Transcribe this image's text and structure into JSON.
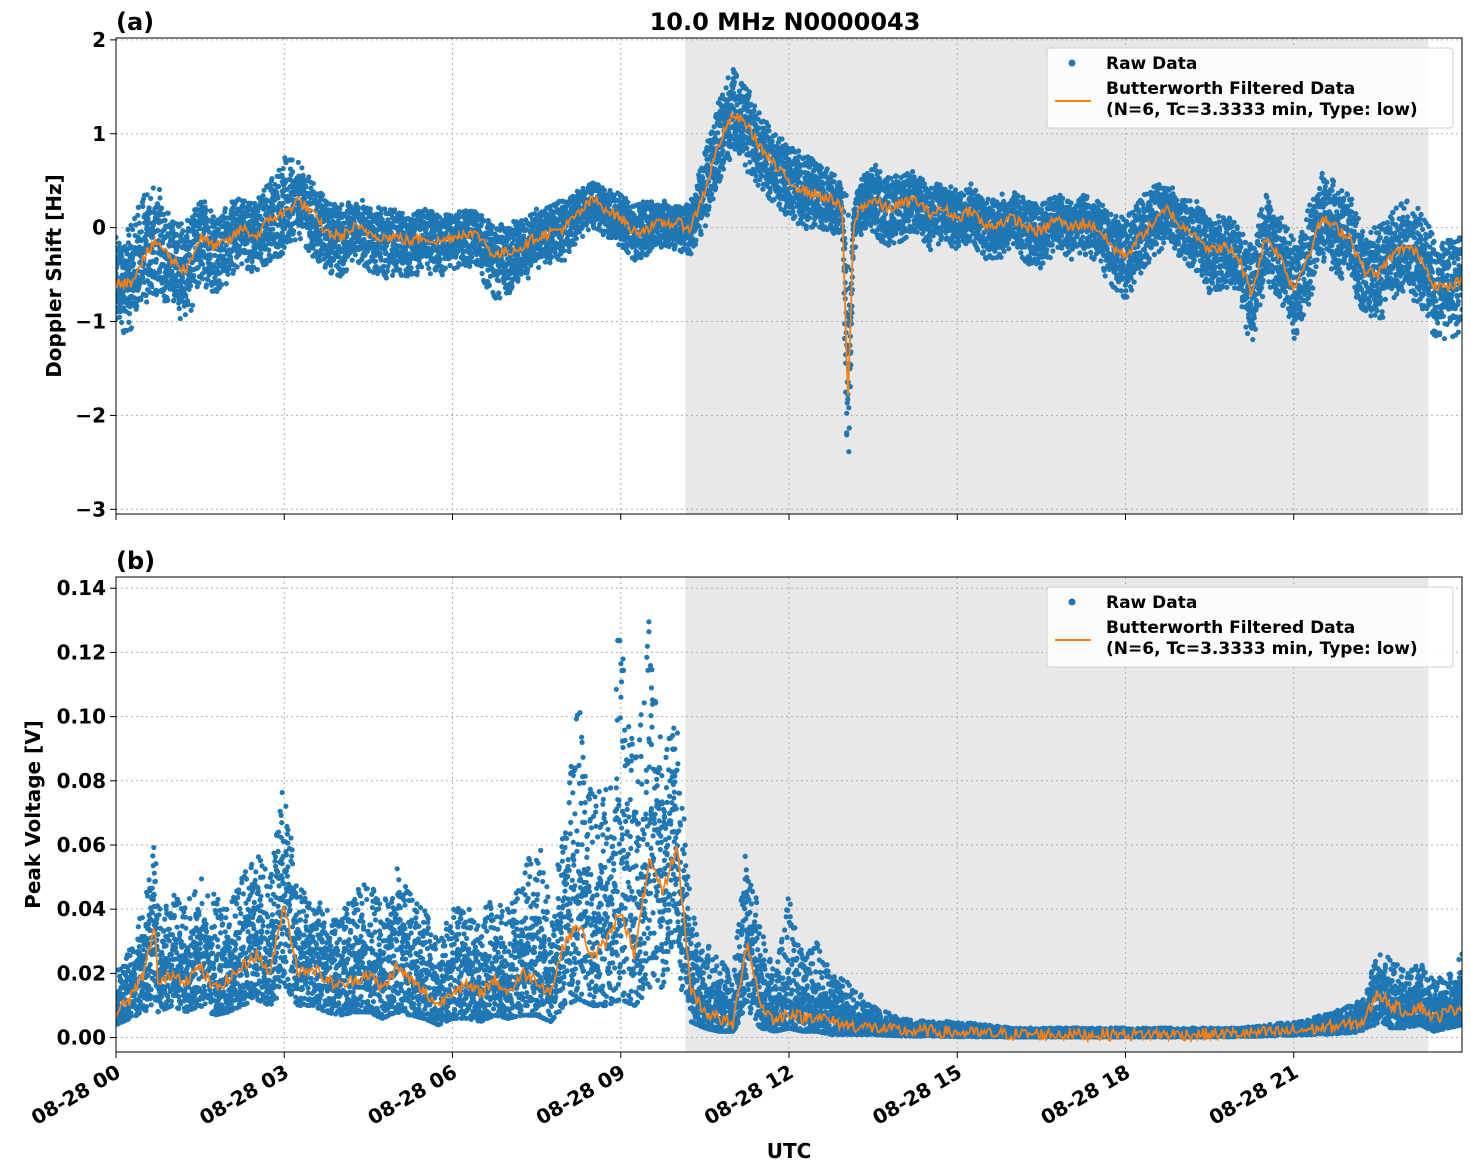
{
  "figure": {
    "title": "10.0 MHz N0000043",
    "xlabel": "UTC"
  },
  "colors": {
    "raw": "#1f77b4",
    "filtered": "#ff7f0e",
    "shade": "#e8e8e8",
    "grid": "#b0b0b0"
  },
  "chart_data": [
    {
      "type": "scatter",
      "panel_label": "(a)",
      "ylabel": "Doppler Shift [Hz]",
      "xlim_hours": [
        0,
        24
      ],
      "ylim": [
        -3.05,
        2.02
      ],
      "yticks": [
        2,
        1,
        0,
        -1,
        -2,
        -3
      ],
      "ytick_labels": [
        "2",
        "1",
        "0",
        "−1",
        "−2",
        "−3"
      ],
      "xticks_hours": [
        0,
        3,
        6,
        9,
        12,
        15,
        18,
        21
      ],
      "grid": true,
      "shaded_interval_hours": [
        10.15,
        23.4
      ],
      "legend": {
        "placement": "top-right",
        "raw_label": "Raw Data",
        "filtered_label_1": "Butterworth Filtered Data",
        "filtered_label_2": "(N=6, Tc=3.3333 min, Type: low)"
      },
      "series": [
        {
          "name": "Butterworth Filtered Data (N=6, Tc=3.3333 min, Type: low)",
          "x_hours": [
            0.0,
            0.25,
            0.5,
            0.75,
            1.0,
            1.25,
            1.5,
            1.75,
            2.0,
            2.25,
            2.5,
            2.75,
            3.0,
            3.25,
            3.5,
            3.75,
            4.0,
            4.25,
            4.5,
            4.75,
            5.0,
            5.25,
            5.5,
            5.75,
            6.0,
            6.25,
            6.5,
            6.75,
            7.0,
            7.25,
            7.5,
            7.75,
            8.0,
            8.25,
            8.5,
            8.75,
            9.0,
            9.25,
            9.5,
            9.75,
            10.0,
            10.25,
            10.5,
            10.75,
            11.0,
            11.25,
            11.5,
            11.75,
            12.0,
            12.25,
            12.5,
            12.75,
            12.95,
            13.05,
            13.15,
            13.25,
            13.5,
            13.75,
            14.0,
            14.25,
            14.5,
            14.75,
            15.0,
            15.25,
            15.5,
            15.75,
            16.0,
            16.25,
            16.5,
            16.75,
            17.0,
            17.25,
            17.5,
            17.75,
            18.0,
            18.25,
            18.5,
            18.75,
            19.0,
            19.25,
            19.5,
            19.75,
            20.0,
            20.25,
            20.5,
            20.75,
            21.0,
            21.25,
            21.5,
            21.75,
            22.0,
            22.25,
            22.5,
            22.75,
            23.0,
            23.25,
            23.5,
            23.75,
            24.0
          ],
          "y": [
            -0.55,
            -0.6,
            -0.3,
            -0.15,
            -0.35,
            -0.45,
            -0.1,
            -0.2,
            -0.15,
            0.0,
            -0.1,
            0.1,
            0.15,
            0.3,
            0.15,
            -0.05,
            -0.1,
            0.0,
            -0.05,
            -0.1,
            -0.1,
            -0.15,
            -0.1,
            -0.15,
            -0.1,
            -0.05,
            -0.1,
            -0.3,
            -0.25,
            -0.2,
            -0.1,
            -0.05,
            0.0,
            0.15,
            0.3,
            0.2,
            0.1,
            -0.05,
            0.0,
            0.05,
            0.05,
            0.0,
            0.4,
            0.9,
            1.2,
            1.1,
            0.85,
            0.65,
            0.5,
            0.4,
            0.35,
            0.3,
            0.2,
            -1.9,
            0.0,
            0.2,
            0.3,
            0.2,
            0.25,
            0.3,
            0.15,
            0.2,
            0.1,
            0.2,
            0.0,
            0.05,
            0.1,
            0.0,
            -0.05,
            0.1,
            0.0,
            0.05,
            0.0,
            -0.2,
            -0.3,
            -0.1,
            0.05,
            0.2,
            0.0,
            -0.05,
            -0.25,
            -0.2,
            -0.3,
            -0.7,
            -0.1,
            -0.3,
            -0.65,
            -0.3,
            0.1,
            0.0,
            -0.1,
            -0.45,
            -0.5,
            -0.3,
            -0.2,
            -0.3,
            -0.6,
            -0.65,
            -0.55
          ]
        },
        {
          "name": "Raw Data",
          "x_hours": [
            0.0,
            0.25,
            0.5,
            0.75,
            1.0,
            1.25,
            1.5,
            1.75,
            2.0,
            2.25,
            2.5,
            2.75,
            3.0,
            3.25,
            3.5,
            3.75,
            4.0,
            4.25,
            4.5,
            4.75,
            5.0,
            5.25,
            5.5,
            5.75,
            6.0,
            6.25,
            6.5,
            6.75,
            7.0,
            7.25,
            7.5,
            7.75,
            8.0,
            8.25,
            8.5,
            8.75,
            9.0,
            9.25,
            9.5,
            9.75,
            10.0,
            10.25,
            10.5,
            10.75,
            11.0,
            11.25,
            11.5,
            11.75,
            12.0,
            12.25,
            12.5,
            12.75,
            12.95,
            13.05,
            13.15,
            13.25,
            13.5,
            13.75,
            14.0,
            14.25,
            14.5,
            14.75,
            15.0,
            15.25,
            15.5,
            15.75,
            16.0,
            16.25,
            16.5,
            16.75,
            17.0,
            17.25,
            17.5,
            17.75,
            18.0,
            18.25,
            18.5,
            18.75,
            19.0,
            19.25,
            19.5,
            19.75,
            20.0,
            20.25,
            20.5,
            20.75,
            21.0,
            21.25,
            21.5,
            21.75,
            22.0,
            22.25,
            22.5,
            22.75,
            23.0,
            23.25,
            23.5,
            23.75,
            24.0
          ],
          "y_upper": [
            -0.1,
            0.0,
            0.4,
            0.45,
            0.1,
            0.05,
            0.35,
            0.2,
            0.25,
            0.35,
            0.3,
            0.55,
            0.75,
            0.7,
            0.5,
            0.3,
            0.25,
            0.3,
            0.3,
            0.2,
            0.2,
            0.15,
            0.2,
            0.15,
            0.15,
            0.2,
            0.15,
            0.05,
            0.05,
            0.1,
            0.2,
            0.25,
            0.3,
            0.4,
            0.5,
            0.45,
            0.35,
            0.25,
            0.3,
            0.3,
            0.25,
            0.3,
            0.8,
            1.4,
            1.7,
            1.5,
            1.2,
            1.0,
            0.9,
            0.8,
            0.7,
            0.6,
            0.5,
            0.3,
            0.2,
            0.5,
            0.7,
            0.55,
            0.6,
            0.6,
            0.45,
            0.5,
            0.4,
            0.5,
            0.3,
            0.35,
            0.4,
            0.3,
            0.25,
            0.4,
            0.3,
            0.35,
            0.3,
            0.15,
            0.1,
            0.3,
            0.45,
            0.5,
            0.3,
            0.3,
            0.1,
            0.15,
            0.05,
            -0.2,
            0.4,
            0.15,
            -0.1,
            0.2,
            0.6,
            0.5,
            0.35,
            0.0,
            0.0,
            0.2,
            0.3,
            0.2,
            -0.05,
            -0.1,
            -0.1
          ],
          "y_lower": [
            -1.15,
            -1.1,
            -0.85,
            -0.7,
            -0.9,
            -1.05,
            -0.6,
            -0.7,
            -0.6,
            -0.4,
            -0.5,
            -0.35,
            -0.3,
            -0.1,
            -0.3,
            -0.45,
            -0.55,
            -0.35,
            -0.45,
            -0.55,
            -0.5,
            -0.55,
            -0.45,
            -0.55,
            -0.45,
            -0.4,
            -0.5,
            -0.8,
            -0.7,
            -0.6,
            -0.45,
            -0.4,
            -0.35,
            -0.15,
            0.0,
            -0.1,
            -0.2,
            -0.35,
            -0.3,
            -0.2,
            -0.25,
            -0.3,
            0.0,
            0.45,
            0.8,
            0.6,
            0.4,
            0.25,
            0.1,
            0.0,
            -0.05,
            -0.05,
            -0.1,
            -2.8,
            -0.3,
            -0.15,
            -0.1,
            -0.2,
            -0.15,
            -0.05,
            -0.25,
            -0.15,
            -0.25,
            -0.15,
            -0.35,
            -0.35,
            -0.2,
            -0.4,
            -0.45,
            -0.25,
            -0.35,
            -0.3,
            -0.35,
            -0.65,
            -0.8,
            -0.5,
            -0.35,
            -0.15,
            -0.35,
            -0.45,
            -0.7,
            -0.65,
            -0.75,
            -1.3,
            -0.6,
            -0.75,
            -1.2,
            -0.85,
            -0.35,
            -0.5,
            -0.6,
            -0.95,
            -1.05,
            -0.8,
            -0.7,
            -0.85,
            -1.15,
            -1.2,
            -1.1
          ]
        }
      ]
    },
    {
      "type": "scatter",
      "panel_label": "(b)",
      "ylabel": "Peak Voltage [V]",
      "xlim_hours": [
        0,
        24
      ],
      "ylim": [
        -0.0045,
        0.1435
      ],
      "yticks": [
        0.0,
        0.02,
        0.04,
        0.06,
        0.08,
        0.1,
        0.12,
        0.14
      ],
      "ytick_labels": [
        "0.00",
        "0.02",
        "0.04",
        "0.06",
        "0.08",
        "0.10",
        "0.12",
        "0.14"
      ],
      "xticks_hours": [
        0,
        3,
        6,
        9,
        12,
        15,
        18,
        21
      ],
      "xtick_labels": [
        "08-28 00",
        "08-28 03",
        "08-28 06",
        "08-28 09",
        "08-28 12",
        "08-28 15",
        "08-28 18",
        "08-28 21"
      ],
      "grid": true,
      "shaded_interval_hours": [
        10.15,
        23.4
      ],
      "legend": {
        "placement": "top-right",
        "raw_label": "Raw Data",
        "filtered_label_1": "Butterworth Filtered Data",
        "filtered_label_2": "(N=6, Tc=3.3333 min, Type: low)"
      },
      "series": [
        {
          "name": "Butterworth Filtered Data (N=6, Tc=3.3333 min, Type: low)",
          "x_hours": [
            0.0,
            0.25,
            0.5,
            0.7,
            0.75,
            1.0,
            1.25,
            1.5,
            1.75,
            2.0,
            2.25,
            2.5,
            2.75,
            3.0,
            3.25,
            3.5,
            3.75,
            4.0,
            4.25,
            4.5,
            4.75,
            5.0,
            5.25,
            5.5,
            5.75,
            6.0,
            6.25,
            6.5,
            6.75,
            7.0,
            7.25,
            7.5,
            7.75,
            8.0,
            8.25,
            8.5,
            8.75,
            9.0,
            9.25,
            9.5,
            9.75,
            10.0,
            10.25,
            10.5,
            10.75,
            11.0,
            11.25,
            11.5,
            11.75,
            12.0,
            12.25,
            12.5,
            12.75,
            13.0,
            13.5,
            14.0,
            14.5,
            15.0,
            15.5,
            16.0,
            16.5,
            17.0,
            17.5,
            18.0,
            18.5,
            19.0,
            19.5,
            20.0,
            20.5,
            21.0,
            21.5,
            22.0,
            22.25,
            22.5,
            22.75,
            23.0,
            23.25,
            23.5,
            23.75,
            24.0
          ],
          "y": [
            0.008,
            0.012,
            0.02,
            0.035,
            0.016,
            0.02,
            0.018,
            0.022,
            0.015,
            0.018,
            0.022,
            0.026,
            0.02,
            0.042,
            0.02,
            0.022,
            0.018,
            0.016,
            0.018,
            0.02,
            0.015,
            0.022,
            0.018,
            0.014,
            0.01,
            0.015,
            0.016,
            0.014,
            0.018,
            0.014,
            0.02,
            0.018,
            0.014,
            0.03,
            0.035,
            0.025,
            0.03,
            0.04,
            0.025,
            0.055,
            0.045,
            0.06,
            0.015,
            0.008,
            0.006,
            0.004,
            0.03,
            0.01,
            0.005,
            0.008,
            0.006,
            0.007,
            0.005,
            0.004,
            0.003,
            0.002,
            0.002,
            0.0015,
            0.0012,
            0.001,
            0.001,
            0.001,
            0.001,
            0.001,
            0.001,
            0.001,
            0.001,
            0.0012,
            0.0015,
            0.002,
            0.003,
            0.004,
            0.005,
            0.014,
            0.01,
            0.008,
            0.01,
            0.006,
            0.008,
            0.01
          ]
        },
        {
          "name": "Raw Data",
          "x_hours": [
            0.0,
            0.25,
            0.5,
            0.7,
            0.75,
            1.0,
            1.25,
            1.5,
            1.75,
            2.0,
            2.25,
            2.5,
            2.75,
            3.0,
            3.25,
            3.5,
            3.75,
            4.0,
            4.25,
            4.5,
            4.75,
            5.0,
            5.25,
            5.5,
            5.75,
            6.0,
            6.25,
            6.5,
            6.75,
            7.0,
            7.25,
            7.5,
            7.75,
            8.0,
            8.25,
            8.5,
            8.75,
            9.0,
            9.25,
            9.5,
            9.75,
            10.0,
            10.25,
            10.5,
            10.75,
            11.0,
            11.25,
            11.5,
            11.75,
            12.0,
            12.25,
            12.5,
            12.75,
            13.0,
            13.5,
            14.0,
            14.5,
            15.0,
            15.5,
            16.0,
            16.5,
            17.0,
            17.5,
            18.0,
            18.5,
            19.0,
            19.5,
            20.0,
            20.5,
            21.0,
            21.5,
            22.0,
            22.25,
            22.5,
            22.75,
            23.0,
            23.25,
            23.5,
            23.75,
            24.0
          ],
          "y_upper": [
            0.02,
            0.03,
            0.042,
            0.062,
            0.04,
            0.045,
            0.042,
            0.05,
            0.045,
            0.04,
            0.05,
            0.058,
            0.05,
            0.081,
            0.048,
            0.045,
            0.04,
            0.038,
            0.045,
            0.05,
            0.04,
            0.056,
            0.045,
            0.04,
            0.03,
            0.04,
            0.042,
            0.038,
            0.045,
            0.04,
            0.05,
            0.068,
            0.04,
            0.07,
            0.105,
            0.075,
            0.08,
            0.136,
            0.085,
            0.13,
            0.09,
            0.1,
            0.04,
            0.03,
            0.025,
            0.02,
            0.062,
            0.035,
            0.02,
            0.045,
            0.025,
            0.03,
            0.02,
            0.018,
            0.01,
            0.006,
            0.005,
            0.005,
            0.004,
            0.003,
            0.003,
            0.003,
            0.003,
            0.003,
            0.003,
            0.003,
            0.003,
            0.003,
            0.004,
            0.005,
            0.007,
            0.01,
            0.012,
            0.028,
            0.025,
            0.02,
            0.024,
            0.018,
            0.02,
            0.027
          ],
          "y_lower": [
            0.004,
            0.006,
            0.008,
            0.01,
            0.008,
            0.01,
            0.008,
            0.01,
            0.007,
            0.008,
            0.01,
            0.012,
            0.01,
            0.015,
            0.01,
            0.01,
            0.008,
            0.007,
            0.008,
            0.008,
            0.006,
            0.008,
            0.007,
            0.006,
            0.004,
            0.006,
            0.006,
            0.005,
            0.007,
            0.006,
            0.007,
            0.007,
            0.005,
            0.01,
            0.012,
            0.01,
            0.01,
            0.012,
            0.01,
            0.015,
            0.015,
            0.02,
            0.005,
            0.003,
            0.002,
            0.002,
            0.008,
            0.003,
            0.002,
            0.003,
            0.002,
            0.002,
            0.001,
            0.001,
            0.001,
            0.0005,
            0.0005,
            0.0003,
            0.0003,
            0.0002,
            0.0002,
            0.0002,
            0.0002,
            0.0002,
            0.0002,
            0.0002,
            0.0002,
            0.0003,
            0.0005,
            0.0008,
            0.001,
            0.0015,
            0.002,
            0.004,
            0.003,
            0.003,
            0.004,
            0.002,
            0.003,
            0.004
          ]
        }
      ]
    }
  ]
}
